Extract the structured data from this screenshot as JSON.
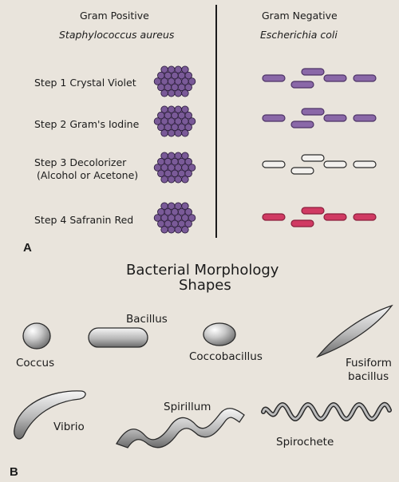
{
  "panel_a": {
    "letter": "A",
    "col_left_title": "Gram Positive",
    "col_left_species": "Staphylococcus aureus",
    "col_right_title": "Gram Negative",
    "col_right_species": "Escherichia coli",
    "steps": [
      {
        "line1": "Step 1  Crystal Violet",
        "line2": "",
        "cocci_color": "#7a5a98",
        "rod_fill": "#8a68a8",
        "rod_stroke": "#4d3366"
      },
      {
        "line1": "Step 2  Gram's Iodine",
        "line2": "",
        "cocci_color": "#7a5a98",
        "rod_fill": "#8a68a8",
        "rod_stroke": "#4d3366"
      },
      {
        "line1": "Step 3  Decolorizer",
        "line2": "(Alcohol or Acetone)",
        "cocci_color": "#7a5a98",
        "rod_fill": "#f3f1ee",
        "rod_stroke": "#2a2a2a"
      },
      {
        "line1": "Step 4  Safranin Red",
        "line2": "",
        "cocci_color": "#7a5a98",
        "rod_fill": "#d03a63",
        "rod_stroke": "#8a1f3c"
      }
    ]
  },
  "panel_b": {
    "letter": "B",
    "title_line1": "Bacterial Morphology",
    "title_line2": "Shapes",
    "shapes": {
      "coccus": "Coccus",
      "bacillus": "Bacillus",
      "coccobacillus": "Coccobacillus",
      "fusiform": "Fusiform\nbacillus",
      "fusiform_line1": "Fusiform",
      "fusiform_line2": "bacillus",
      "vibrio": "Vibrio",
      "spirillum": "Spirillum",
      "spirochete": "Spirochete"
    }
  }
}
